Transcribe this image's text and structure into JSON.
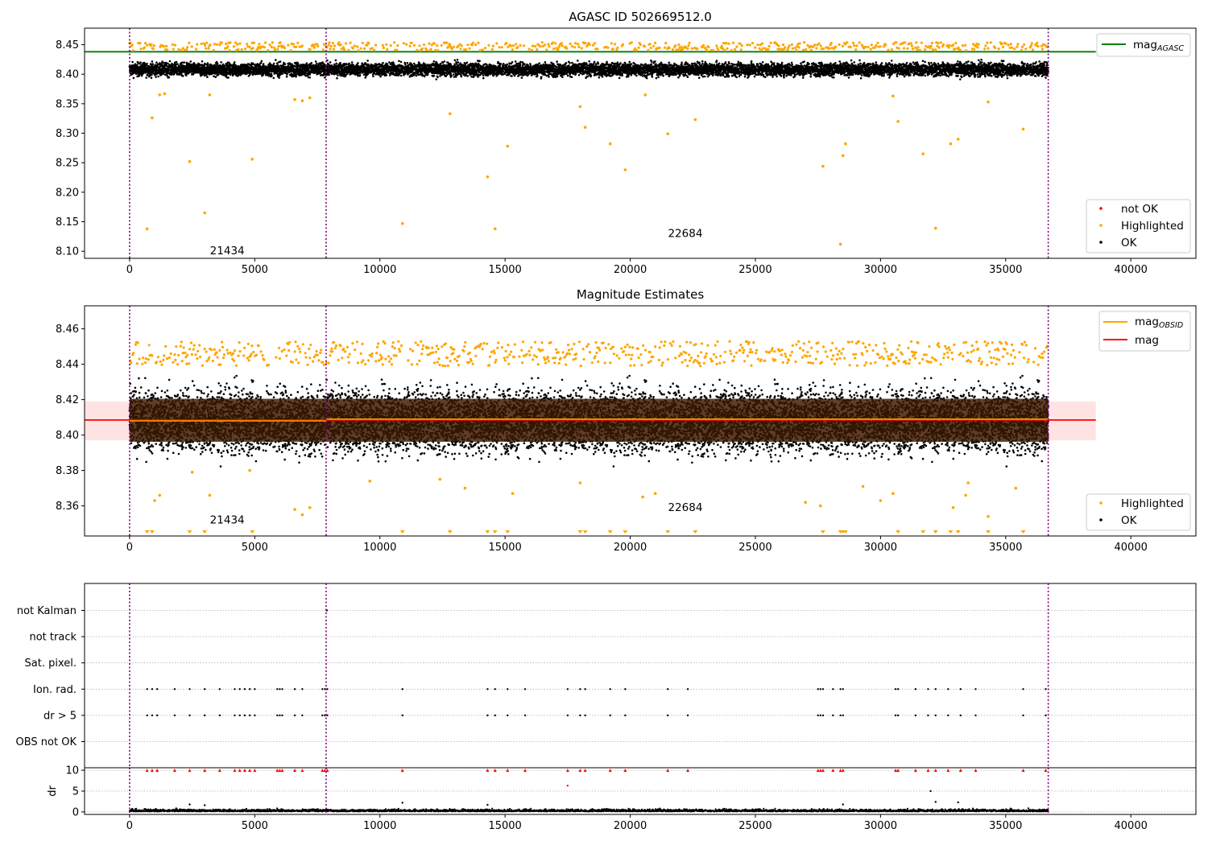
{
  "chart_data": [
    {
      "type": "scatter",
      "title": "AGASC ID 502669512.0",
      "xlim": [
        -1800,
        42600
      ],
      "ylim": [
        8.088,
        8.478
      ],
      "x_ticks": [
        0,
        5000,
        10000,
        15000,
        20000,
        25000,
        30000,
        35000,
        40000
      ],
      "y_ticks": [
        8.1,
        8.15,
        8.2,
        8.25,
        8.3,
        8.35,
        8.4,
        8.45
      ],
      "grid": false,
      "obsid_boundaries": [
        0,
        7850,
        36700
      ],
      "obsid_labels": [
        {
          "text": "21434",
          "x": 3900,
          "y": 8.095
        },
        {
          "text": "22684",
          "x": 22200,
          "y": 8.124
        }
      ],
      "reference_lines": [
        {
          "name": "mag_AGASC",
          "y": 8.438,
          "color": "#008000"
        }
      ],
      "ok_band": {
        "center": 8.408,
        "half_width": 0.013
      },
      "highlighted_points": [
        {
          "x": 700,
          "y": 8.138
        },
        {
          "x": 900,
          "y": 8.326
        },
        {
          "x": 1200,
          "y": 8.365
        },
        {
          "x": 1400,
          "y": 8.367
        },
        {
          "x": 2400,
          "y": 8.252
        },
        {
          "x": 3000,
          "y": 8.165
        },
        {
          "x": 3200,
          "y": 8.365
        },
        {
          "x": 4900,
          "y": 8.256
        },
        {
          "x": 6600,
          "y": 8.357
        },
        {
          "x": 6900,
          "y": 8.355
        },
        {
          "x": 7200,
          "y": 8.36
        },
        {
          "x": 10900,
          "y": 8.147
        },
        {
          "x": 12800,
          "y": 8.333
        },
        {
          "x": 14300,
          "y": 8.226
        },
        {
          "x": 14600,
          "y": 8.138
        },
        {
          "x": 15100,
          "y": 8.278
        },
        {
          "x": 18000,
          "y": 8.345
        },
        {
          "x": 18200,
          "y": 8.31
        },
        {
          "x": 19200,
          "y": 8.282
        },
        {
          "x": 19800,
          "y": 8.238
        },
        {
          "x": 21500,
          "y": 8.299
        },
        {
          "x": 22600,
          "y": 8.323
        },
        {
          "x": 27700,
          "y": 8.244
        },
        {
          "x": 28400,
          "y": 8.112
        },
        {
          "x": 28500,
          "y": 8.262
        },
        {
          "x": 28600,
          "y": 8.282
        },
        {
          "x": 30700,
          "y": 8.32
        },
        {
          "x": 31700,
          "y": 8.265
        },
        {
          "x": 32200,
          "y": 8.139
        },
        {
          "x": 32800,
          "y": 8.282
        },
        {
          "x": 33100,
          "y": 8.29
        },
        {
          "x": 34300,
          "y": 8.353
        },
        {
          "x": 35700,
          "y": 8.307
        },
        {
          "x": 20600,
          "y": 8.365
        },
        {
          "x": 30500,
          "y": 8.363
        }
      ],
      "legend_lines": [
        {
          "label": "mag",
          "subscript": "AGASC",
          "color": "#008000"
        }
      ],
      "legend_points": [
        {
          "label": "not OK",
          "color": "#ff0000"
        },
        {
          "label": "Highlighted",
          "color": "#ffa500"
        },
        {
          "label": "OK",
          "color": "#000000"
        }
      ]
    },
    {
      "type": "scatter",
      "title": "Magnitude Estimates",
      "xlim": [
        -1800,
        42600
      ],
      "ylim": [
        8.343,
        8.473
      ],
      "x_ticks": [
        0,
        5000,
        10000,
        15000,
        20000,
        25000,
        30000,
        35000,
        40000
      ],
      "y_ticks": [
        8.36,
        8.38,
        8.4,
        8.42,
        8.44,
        8.46
      ],
      "grid": false,
      "obsid_boundaries": [
        0,
        7850,
        36700
      ],
      "obsid_labels": [
        {
          "text": "21434",
          "x": 3900,
          "y": 8.35
        },
        {
          "text": "22684",
          "x": 22200,
          "y": 8.357
        }
      ],
      "reference_lines": [
        {
          "name": "mag",
          "y": 8.4085,
          "color": "#ff0000"
        }
      ],
      "mag_band": [
        8.397,
        8.419
      ],
      "obsid_mags": [
        {
          "x_start": 0,
          "x_end": 7850,
          "y": 8.408
        },
        {
          "x_start": 7850,
          "x_end": 36700,
          "y": 8.409
        }
      ],
      "ok_band": {
        "center": 8.408,
        "half_width": 0.016
      },
      "out_of_range_markers_x": [
        700,
        900,
        2400,
        3000,
        4900,
        10900,
        12800,
        14300,
        14600,
        15100,
        18000,
        18200,
        19200,
        19800,
        21500,
        22600,
        27700,
        28400,
        28500,
        28600,
        30700,
        31700,
        32200,
        32800,
        33100,
        34300,
        35700
      ],
      "highlighted_points": [
        {
          "x": 1200,
          "y": 8.366
        },
        {
          "x": 1000,
          "y": 8.363
        },
        {
          "x": 3200,
          "y": 8.366
        },
        {
          "x": 6600,
          "y": 8.358
        },
        {
          "x": 6900,
          "y": 8.355
        },
        {
          "x": 7200,
          "y": 8.359
        },
        {
          "x": 2500,
          "y": 8.379
        },
        {
          "x": 4800,
          "y": 8.38
        },
        {
          "x": 9600,
          "y": 8.374
        },
        {
          "x": 12400,
          "y": 8.375
        },
        {
          "x": 13400,
          "y": 8.37
        },
        {
          "x": 15300,
          "y": 8.367
        },
        {
          "x": 18000,
          "y": 8.373
        },
        {
          "x": 20500,
          "y": 8.365
        },
        {
          "x": 21000,
          "y": 8.367
        },
        {
          "x": 27000,
          "y": 8.362
        },
        {
          "x": 27600,
          "y": 8.36
        },
        {
          "x": 29300,
          "y": 8.371
        },
        {
          "x": 30000,
          "y": 8.363
        },
        {
          "x": 30500,
          "y": 8.367
        },
        {
          "x": 32900,
          "y": 8.359
        },
        {
          "x": 33500,
          "y": 8.373
        },
        {
          "x": 33400,
          "y": 8.366
        },
        {
          "x": 34300,
          "y": 8.354
        },
        {
          "x": 35400,
          "y": 8.37
        }
      ],
      "legend_lines": [
        {
          "label": "mag",
          "subscript": "OBSID",
          "color": "#ffa500"
        },
        {
          "label": "mag",
          "subscript": "",
          "color": "#ff0000"
        }
      ],
      "legend_points": [
        {
          "label": "Highlighted",
          "color": "#ffa500"
        },
        {
          "label": "OK",
          "color": "#000000"
        }
      ]
    },
    {
      "type": "scatter",
      "title": "",
      "xlim": [
        -1800,
        42600
      ],
      "y_categories": [
        "OBS not OK",
        "dr > 5",
        "Ion. rad.",
        "Sat. pixel.",
        "not track",
        "not Kalman"
      ],
      "flag_times": [
        700,
        900,
        1100,
        1800,
        2400,
        3000,
        3600,
        4200,
        4400,
        4600,
        4800,
        5000,
        5900,
        6000,
        6100,
        6600,
        6900,
        7700,
        7800,
        7900,
        10900,
        14300,
        14600,
        15100,
        15800,
        17500,
        18000,
        18200,
        19200,
        19800,
        21500,
        22300,
        27500,
        27600,
        27700,
        28100,
        28400,
        28500,
        30600,
        30700,
        31400,
        31900,
        32200,
        32700,
        33200,
        33800,
        35700,
        36600
      ],
      "not_kalman_times": [
        7880
      ],
      "obsid_boundaries": [
        0,
        7850,
        36700
      ]
    },
    {
      "type": "scatter",
      "title": "",
      "xlim": [
        -1800,
        42600
      ],
      "ylim": [
        -0.6,
        10.6
      ],
      "ylabel": "dr",
      "y_ticks": [
        0,
        5,
        10
      ],
      "x_ticks": [
        0,
        5000,
        10000,
        15000,
        20000,
        25000,
        30000,
        35000,
        40000
      ],
      "clipped_marker_y": 10,
      "outlier_points": [
        {
          "x": 17500,
          "y": 6.3
        },
        {
          "x": 32000,
          "y": 5.0
        },
        {
          "x": 32200,
          "y": 2.4
        },
        {
          "x": 33100,
          "y": 2.3
        },
        {
          "x": 10900,
          "y": 2.2
        },
        {
          "x": 2400,
          "y": 1.8
        },
        {
          "x": 3000,
          "y": 1.6
        },
        {
          "x": 14300,
          "y": 1.7
        },
        {
          "x": 28500,
          "y": 1.8
        }
      ],
      "obsid_boundaries": [
        0,
        7850,
        36700
      ]
    }
  ],
  "colors": {
    "ok": "#000000",
    "highlighted": "#ffa500",
    "not_ok": "#ff0000",
    "agasc_line": "#008000",
    "obsid_boundary": "#800080",
    "mag_band": "#ffc0c0"
  }
}
